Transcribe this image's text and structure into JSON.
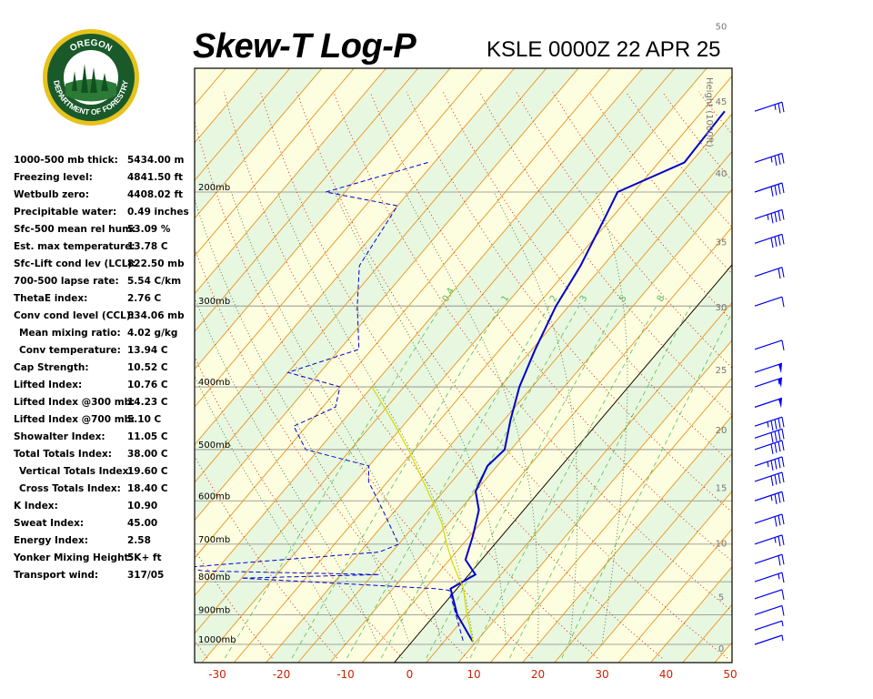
{
  "header": {
    "title": "Skew-T Log-P",
    "subtitle": "KSLE 0000Z 22 APR 25",
    "logo_text_top": "OREGON",
    "logo_text_bottom": "DEPARTMENT OF FORESTRY"
  },
  "indices": [
    {
      "label": "1000-500 mb thick:",
      "value": "5434.00 m",
      "indent": false
    },
    {
      "label": "Freezing level:",
      "value": "4841.50 ft",
      "indent": false
    },
    {
      "label": "Wetbulb zero:",
      "value": "4408.02 ft",
      "indent": false
    },
    {
      "label": "Precipitable water:",
      "value": "0.49 inches",
      "indent": false
    },
    {
      "label": "Sfc-500 mean rel hum:",
      "value": "53.09 %",
      "indent": false
    },
    {
      "label": "Est. max temperature:",
      "value": "13.78 C",
      "indent": false
    },
    {
      "label": "Sfc-Lift cond lev (LCL):",
      "value": "822.50 mb",
      "indent": false
    },
    {
      "label": "700-500 lapse rate:",
      "value": "5.54 C/km",
      "indent": false
    },
    {
      "label": "ThetaE index:",
      "value": "2.76 C",
      "indent": false
    },
    {
      "label": "Conv cond level (CCL):",
      "value": "834.06 mb",
      "indent": false
    },
    {
      "label": "Mean mixing ratio:",
      "value": "4.02 g/kg",
      "indent": true
    },
    {
      "label": "Conv temperature:",
      "value": "13.94 C",
      "indent": true
    },
    {
      "label": "Cap Strength:",
      "value": "10.52 C",
      "indent": false
    },
    {
      "label": "Lifted Index:",
      "value": "10.76 C",
      "indent": false
    },
    {
      "label": "Lifted Index @300 mb:",
      "value": "14.23 C",
      "indent": false
    },
    {
      "label": "Lifted Index @700 mb:",
      "value": "5.10 C",
      "indent": false
    },
    {
      "label": "Showalter Index:",
      "value": "11.05 C",
      "indent": false
    },
    {
      "label": "Total Totals Index:",
      "value": "38.00 C",
      "indent": false
    },
    {
      "label": "Vertical Totals Index:",
      "value": "19.60 C",
      "indent": true
    },
    {
      "label": "Cross Totals Index:",
      "value": "18.40 C",
      "indent": true
    },
    {
      "label": "K Index:",
      "value": "10.90",
      "indent": false
    },
    {
      "label": "Sweat Index:",
      "value": "45.00",
      "indent": false
    },
    {
      "label": "Energy Index:",
      "value": "2.58",
      "indent": false
    },
    {
      "label": "Yonker Mixing Height:",
      "value": "5K+ ft",
      "indent": false
    },
    {
      "label": "Transport wind:",
      "value": "317/05",
      "indent": false
    }
  ],
  "chart_data": {
    "type": "line",
    "title": "Skew-T Log-P",
    "subtitle": "KSLE 0000Z 22 APR 25",
    "xlabel": "",
    "ylabel": "",
    "x_ticks": [
      -30,
      -20,
      -10,
      0,
      10,
      20,
      30,
      40,
      50
    ],
    "x_tick_labels": [
      "-30",
      "-20",
      "-10",
      "0",
      "10",
      "20",
      "30",
      "40",
      "50"
    ],
    "pressure_levels": [
      200,
      300,
      400,
      500,
      600,
      700,
      800,
      900,
      1000
    ],
    "pressure_labels": [
      "200mb",
      "300mb",
      "400mb",
      "500mb",
      "600mb",
      "700mb",
      "800mb",
      "900mb",
      "1000mb"
    ],
    "height_axis_label": "Height (1000ft)",
    "height_ticks": [
      "0",
      "5",
      "10",
      "15",
      "20",
      "25",
      "30",
      "35",
      "40",
      "45",
      "50"
    ],
    "mixing_ratio_labels": [
      "0.4",
      "1",
      "2",
      "3",
      "5",
      "8"
    ],
    "series": [
      {
        "name": "Temperature",
        "color": "#0000cc",
        "style": "solid",
        "points": [
          [
            -21.5,
            150
          ],
          [
            -21,
            180
          ],
          [
            -27.5,
            200
          ],
          [
            -26,
            220
          ],
          [
            -23.5,
            260
          ],
          [
            -22,
            300
          ],
          [
            -19.5,
            350
          ],
          [
            -17,
            400
          ],
          [
            -14,
            450
          ],
          [
            -11,
            500
          ],
          [
            -11.5,
            530
          ],
          [
            -10,
            580
          ],
          [
            -7,
            620
          ],
          [
            -4.5,
            680
          ],
          [
            -2.5,
            740
          ],
          [
            1,
            780
          ],
          [
            -1,
            820
          ],
          [
            3.5,
            900
          ],
          [
            8.5,
            975
          ],
          [
            9.5,
            990
          ]
        ]
      },
      {
        "name": "Dewpoint",
        "color": "#0000cc",
        "style": "dashed",
        "points": [
          [
            -61,
            180
          ],
          [
            -73,
            200
          ],
          [
            -60,
            210
          ],
          [
            -58,
            260
          ],
          [
            -53,
            300
          ],
          [
            -47,
            350
          ],
          [
            -55,
            380
          ],
          [
            -45,
            400
          ],
          [
            -43,
            430
          ],
          [
            -47,
            460
          ],
          [
            -42,
            500
          ],
          [
            -30,
            530
          ],
          [
            -28,
            560
          ],
          [
            -22,
            620
          ],
          [
            -15,
            700
          ],
          [
            -17,
            720
          ],
          [
            -45,
            760
          ],
          [
            -42,
            770
          ],
          [
            -14,
            780
          ],
          [
            -35,
            790
          ],
          [
            -3.5,
            820
          ],
          [
            -1,
            825
          ],
          [
            8,
            990
          ]
        ]
      },
      {
        "name": "Parcel",
        "color": "#d8d800",
        "style": "solid",
        "points": [
          [
            9.5,
            990
          ],
          [
            5,
            900
          ],
          [
            1,
            820
          ],
          [
            -4,
            750
          ],
          [
            -7.5,
            700
          ],
          [
            -11,
            650
          ],
          [
            -15.5,
            600
          ],
          [
            -20.5,
            550
          ],
          [
            -26,
            500
          ],
          [
            -32.5,
            450
          ],
          [
            -40,
            400
          ]
        ]
      }
    ],
    "wind_barbs": [
      {
        "pressure": 150,
        "speed": 25
      },
      {
        "pressure": 180,
        "speed": 35
      },
      {
        "pressure": 200,
        "speed": 40
      },
      {
        "pressure": 220,
        "speed": 45
      },
      {
        "pressure": 240,
        "speed": 40
      },
      {
        "pressure": 270,
        "speed": 20
      },
      {
        "pressure": 300,
        "speed": 10
      },
      {
        "pressure": 350,
        "speed": 10
      },
      {
        "pressure": 380,
        "speed": 50
      },
      {
        "pressure": 400,
        "speed": 55
      },
      {
        "pressure": 430,
        "speed": 50
      },
      {
        "pressure": 460,
        "speed": 45
      },
      {
        "pressure": 480,
        "speed": 40
      },
      {
        "pressure": 500,
        "speed": 40
      },
      {
        "pressure": 530,
        "speed": 45
      },
      {
        "pressure": 560,
        "speed": 40
      },
      {
        "pressure": 600,
        "speed": 35
      },
      {
        "pressure": 650,
        "speed": 30
      },
      {
        "pressure": 700,
        "speed": 25
      },
      {
        "pressure": 750,
        "speed": 20
      },
      {
        "pressure": 800,
        "speed": 15
      },
      {
        "pressure": 850,
        "speed": 10
      },
      {
        "pressure": 900,
        "speed": 10
      },
      {
        "pressure": 950,
        "speed": 5
      },
      {
        "pressure": 1000,
        "speed": 5
      }
    ],
    "grid": true
  }
}
